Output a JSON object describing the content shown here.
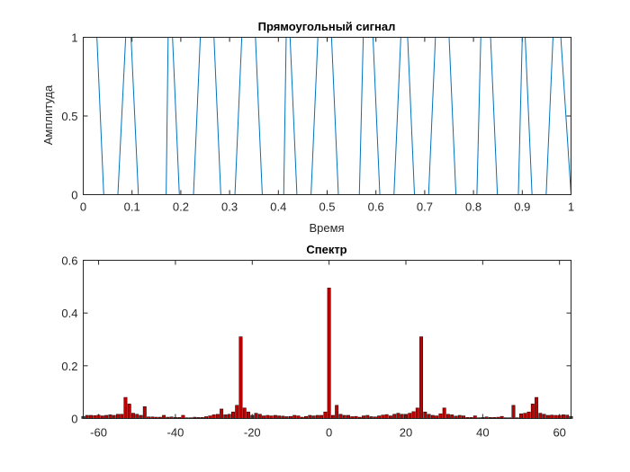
{
  "chart_data": [
    {
      "type": "line",
      "title": "Прямоугольный сигнал",
      "xlabel": "Время",
      "ylabel": "Амплитуда",
      "xlim": [
        0,
        1
      ],
      "ylim": [
        0,
        1
      ],
      "xticks": [
        0,
        0.1,
        0.2,
        0.3,
        0.4,
        0.5,
        0.6,
        0.7,
        0.8,
        0.9,
        1
      ],
      "xtick_labels": [
        "0",
        "0.1",
        "0.2",
        "0.3",
        "0.4",
        "0.5",
        "0.6",
        "0.7",
        "0.8",
        "0.9",
        "1"
      ],
      "yticks": [
        0,
        0.5,
        1
      ],
      "ytick_labels": [
        "0",
        "0.5",
        "1"
      ],
      "grid": false,
      "color": "#0072BD",
      "series": [
        {
          "x": [
            0,
            0.028,
            0.042,
            0.071,
            0.087,
            0.098,
            0.113,
            0.127,
            0.156,
            0.17,
            0.174,
            0.183,
            0.197,
            0.226,
            0.24,
            0.26,
            0.268,
            0.282,
            0.311,
            0.325,
            0.337,
            0.353,
            0.367,
            0.396,
            0.411,
            0.416,
            0.424,
            0.438,
            0.467,
            0.481,
            0.5,
            0.509,
            0.523,
            0.552,
            0.566,
            0.574,
            0.594,
            0.608,
            0.637,
            0.651,
            0.661,
            0.665,
            0.679,
            0.708,
            0.722,
            0.74,
            0.75,
            0.764,
            0.793,
            0.807,
            0.815,
            0.835,
            0.849,
            0.878,
            0.892,
            0.9,
            0.906,
            0.92,
            0.949,
            0.963,
            0.979,
            1.0
          ],
          "y": [
            1,
            1,
            0,
            0,
            1,
            1,
            0,
            0,
            0,
            0,
            1,
            1,
            0,
            0,
            1,
            1,
            1,
            0,
            0,
            1,
            1,
            1,
            0,
            0,
            0,
            1,
            1,
            0,
            0,
            1,
            1,
            1,
            0,
            0,
            0,
            1,
            1,
            0,
            0,
            1,
            1,
            1,
            0,
            0,
            1,
            1,
            1,
            0,
            0,
            0,
            1,
            1,
            0,
            0,
            0,
            1,
            1,
            0,
            0,
            1,
            1,
            0
          ]
        }
      ]
    },
    {
      "type": "bar",
      "title": "Спектр",
      "xlim": [
        -64,
        63
      ],
      "ylim": [
        0,
        0.6
      ],
      "xticks": [
        -60,
        -40,
        -20,
        0,
        20,
        40,
        60
      ],
      "xtick_labels": [
        "-60",
        "-40",
        "-20",
        "0",
        "20",
        "40",
        "60"
      ],
      "yticks": [
        0,
        0.2,
        0.4,
        0.6
      ],
      "ytick_labels": [
        "0",
        "0.2",
        "0.4",
        "0.6"
      ],
      "grid": false,
      "color": "#C00000",
      "x_start": -64,
      "values": [
        0.008,
        0.012,
        0.012,
        0.011,
        0.013,
        0.01,
        0.012,
        0.014,
        0.012,
        0.016,
        0.016,
        0.08,
        0.055,
        0.02,
        0.016,
        0.012,
        0.045,
        0.006,
        0.006,
        0.005,
        0.005,
        0.012,
        0.005,
        0.006,
        0.004,
        0.004,
        0.012,
        0.003,
        0.003,
        0.005,
        0.004,
        0.004,
        0.007,
        0.01,
        0.014,
        0.016,
        0.036,
        0.014,
        0.016,
        0.025,
        0.05,
        0.31,
        0.04,
        0.025,
        0.012,
        0.02,
        0.016,
        0.01,
        0.012,
        0.01,
        0.012,
        0.01,
        0.009,
        0.007,
        0.008,
        0.012,
        0.01,
        0.005,
        0.008,
        0.012,
        0.01,
        0.012,
        0.012,
        0.025,
        0.495,
        0.012,
        0.05,
        0.016,
        0.012,
        0.012,
        0.007,
        0.008,
        0.005,
        0.01,
        0.012,
        0.007,
        0.006,
        0.01,
        0.013,
        0.015,
        0.01,
        0.016,
        0.02,
        0.016,
        0.016,
        0.02,
        0.026,
        0.04,
        0.31,
        0.025,
        0.016,
        0.012,
        0.01,
        0.018,
        0.04,
        0.016,
        0.014,
        0.009,
        0.012,
        0.01,
        0.004,
        0.004,
        0.01,
        0.003,
        0.004,
        0.006,
        0.004,
        0.004,
        0.005,
        0.008,
        0.003,
        0.003,
        0.05,
        0.003,
        0.018,
        0.02,
        0.025,
        0.055,
        0.08,
        0.02,
        0.016,
        0.012,
        0.013,
        0.012,
        0.012,
        0.014,
        0.013,
        0.008
      ]
    }
  ]
}
